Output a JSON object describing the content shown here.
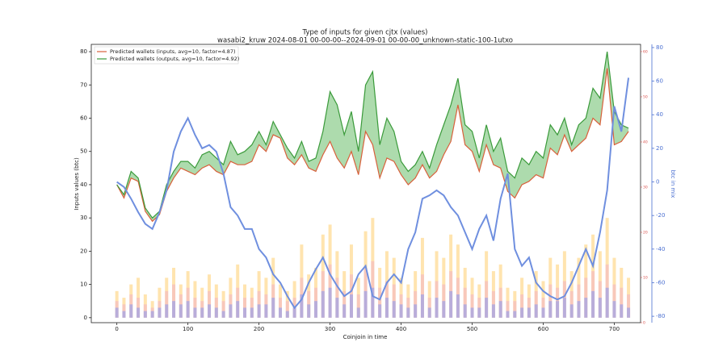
{
  "chart_data": {
    "type": "line",
    "title": "Type of inputs for given cjtx (values)",
    "subtitle": "wasabi2_kruw 2024-08-01 00-00-00--2024-09-01 00-00-00_unknown-static-100-1utxo",
    "x_label": "Coinjoin in time",
    "y_label": "Inputs values (btc)",
    "y2_label": "btc in mix",
    "xlim": [
      -36,
      737
    ],
    "xticks": [
      0,
      100,
      200,
      300,
      400,
      500,
      600,
      700
    ],
    "ylim": [
      -1.5,
      82.2
    ],
    "yticks": [
      0,
      10,
      20,
      30,
      40,
      50,
      60,
      70,
      80
    ],
    "y2lim": [
      -83.8,
      81.9
    ],
    "y2ticks": [
      -80,
      -60,
      -40,
      -20,
      0,
      20,
      40,
      60,
      80
    ],
    "y3lim": [
      0,
      61.6
    ],
    "y3ticks": [
      0,
      10,
      20,
      30,
      40,
      50,
      60
    ],
    "legend": "upper left",
    "fill_color": "#5cb85c",
    "x": [
      0,
      10,
      20,
      30,
      40,
      50,
      60,
      70,
      80,
      90,
      100,
      110,
      120,
      130,
      140,
      150,
      160,
      170,
      180,
      190,
      200,
      210,
      220,
      230,
      240,
      250,
      260,
      270,
      280,
      290,
      300,
      310,
      320,
      330,
      340,
      350,
      360,
      370,
      380,
      390,
      400,
      410,
      420,
      430,
      440,
      450,
      460,
      470,
      480,
      490,
      500,
      510,
      520,
      530,
      540,
      550,
      560,
      570,
      580,
      590,
      600,
      610,
      620,
      630,
      640,
      650,
      660,
      670,
      680,
      690,
      700,
      710,
      720
    ],
    "series": [
      {
        "name": "Predicted wallets (inputs, avg=10, factor=4.87)",
        "color": "#d9603b",
        "values": [
          40,
          36,
          42,
          41,
          32,
          29,
          31,
          38,
          42,
          45,
          44,
          43,
          45,
          46,
          44,
          43,
          47,
          46,
          46,
          47,
          52,
          50,
          55,
          54,
          48,
          46,
          49,
          45,
          44,
          49,
          53,
          48,
          45,
          50,
          43,
          56,
          52,
          42,
          48,
          47,
          43,
          40,
          42,
          46,
          42,
          44,
          49,
          53,
          64,
          52,
          50,
          44,
          52,
          46,
          45,
          38,
          36,
          40,
          41,
          43,
          42,
          51,
          49,
          55,
          50,
          52,
          54,
          60,
          58,
          75,
          52,
          53,
          56
        ]
      },
      {
        "name": "Predicted wallets (outputs, avg=10, factor=4.92)",
        "color": "#3a9a3a",
        "values": [
          40,
          37,
          44,
          42,
          33,
          30,
          32,
          40,
          44,
          47,
          47,
          45,
          49,
          50,
          48,
          46,
          53,
          49,
          50,
          52,
          56,
          52,
          59,
          55,
          51,
          48,
          53,
          47,
          48,
          56,
          68,
          64,
          55,
          62,
          50,
          70,
          74,
          52,
          60,
          56,
          47,
          44,
          46,
          50,
          45,
          52,
          58,
          64,
          72,
          58,
          56,
          48,
          58,
          50,
          54,
          44,
          42,
          48,
          46,
          50,
          48,
          58,
          55,
          60,
          52,
          58,
          60,
          69,
          66,
          80,
          62,
          58,
          57
        ]
      },
      {
        "color": "#6f8fdf",
        "axis": "y2",
        "values": [
          0,
          -3,
          -10,
          -18,
          -25,
          -28,
          -18,
          -5,
          18,
          30,
          38,
          28,
          20,
          22,
          18,
          5,
          -15,
          -20,
          -28,
          -28,
          -40,
          -45,
          -55,
          -60,
          -68,
          -75,
          -70,
          -60,
          -52,
          -45,
          -55,
          -62,
          -68,
          -65,
          -55,
          -50,
          -68,
          -70,
          -60,
          -55,
          -60,
          -40,
          -30,
          -10,
          -8,
          -5,
          -8,
          -15,
          -20,
          -30,
          -40,
          -28,
          -20,
          -35,
          -10,
          5,
          -40,
          -50,
          -45,
          -60,
          -65,
          -68,
          -70,
          -68,
          -60,
          -50,
          -40,
          -50,
          -30,
          -5,
          45,
          30,
          62
        ]
      }
    ],
    "bar_series": [
      {
        "color": "#ffd27a",
        "values": [
          8,
          6,
          10,
          12,
          7,
          5,
          9,
          12,
          15,
          10,
          14,
          11,
          9,
          13,
          10,
          8,
          12,
          16,
          10,
          9,
          14,
          12,
          18,
          10,
          8,
          11,
          22,
          13,
          15,
          25,
          28,
          20,
          14,
          22,
          12,
          26,
          30,
          15,
          20,
          18,
          12,
          10,
          14,
          24,
          11,
          20,
          18,
          25,
          22,
          15,
          12,
          10,
          20,
          14,
          16,
          9,
          8,
          12,
          10,
          14,
          11,
          18,
          16,
          20,
          14,
          18,
          22,
          25,
          20,
          30,
          18,
          15,
          12
        ]
      },
      {
        "color": "#f4b6c2",
        "values": [
          5,
          4,
          7,
          6,
          4,
          3,
          5,
          8,
          10,
          7,
          9,
          6,
          5,
          8,
          6,
          5,
          7,
          9,
          6,
          6,
          8,
          7,
          10,
          6,
          5,
          6,
          12,
          8,
          9,
          14,
          16,
          12,
          8,
          13,
          7,
          15,
          17,
          9,
          11,
          10,
          7,
          6,
          8,
          13,
          6,
          11,
          10,
          14,
          12,
          9,
          7,
          6,
          11,
          8,
          9,
          5,
          5,
          7,
          6,
          8,
          6,
          10,
          9,
          11,
          8,
          10,
          12,
          14,
          11,
          16,
          10,
          9,
          7
        ]
      },
      {
        "color": "#8f9bf0",
        "values": [
          3,
          2,
          4,
          3,
          2,
          2,
          3,
          4,
          5,
          4,
          5,
          3,
          3,
          4,
          3,
          2,
          4,
          5,
          3,
          3,
          4,
          4,
          6,
          3,
          2,
          3,
          7,
          4,
          5,
          8,
          9,
          6,
          4,
          7,
          3,
          8,
          9,
          4,
          6,
          5,
          4,
          3,
          4,
          7,
          3,
          6,
          5,
          8,
          7,
          4,
          3,
          3,
          6,
          4,
          5,
          2,
          2,
          3,
          3,
          4,
          3,
          5,
          5,
          6,
          4,
          5,
          6,
          8,
          6,
          9,
          5,
          4,
          3
        ]
      }
    ]
  }
}
